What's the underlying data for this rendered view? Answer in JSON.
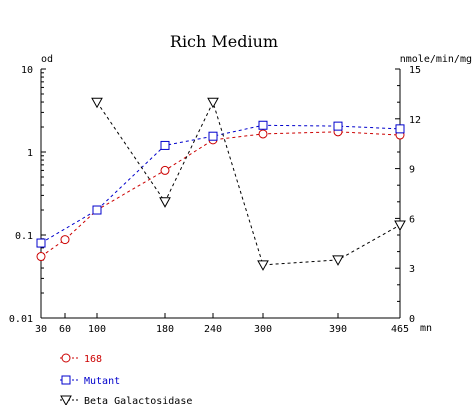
{
  "chart_data": {
    "type": "line",
    "title": "Rich Medium",
    "x": {
      "unit": "mn",
      "range": [
        30,
        465
      ],
      "ticks": [
        30,
        60,
        100,
        180,
        240,
        300,
        390,
        465
      ],
      "tick_labels": [
        "30",
        "60",
        "100",
        "180",
        "240",
        "300",
        "390",
        "465"
      ]
    },
    "y_left": {
      "label": "od",
      "scale": "log",
      "range": [
        0.01,
        10
      ],
      "ticks": [
        0.01,
        0.1,
        1,
        10
      ],
      "tick_labels": [
        "0.01",
        "0.1",
        "1",
        "10"
      ]
    },
    "y_right": {
      "label": "nmole/min/mg",
      "scale": "linear",
      "range": [
        0,
        15
      ],
      "ticks": [
        0,
        3,
        6,
        9,
        12,
        15
      ],
      "tick_labels": [
        "0",
        "3",
        "6",
        "9",
        "12",
        "15"
      ]
    },
    "series": [
      {
        "name": "168",
        "axis": "left",
        "marker": "circle",
        "color": "#cc0000",
        "x": [
          30,
          60,
          100,
          180,
          240,
          300,
          390,
          465
        ],
        "y": [
          0.055,
          0.088,
          0.2,
          0.6,
          1.4,
          1.65,
          1.75,
          1.6
        ]
      },
      {
        "name": "Mutant",
        "axis": "left",
        "marker": "square",
        "color": "#0000cc",
        "x": [
          30,
          100,
          180,
          240,
          300,
          390,
          465
        ],
        "y": [
          0.08,
          0.2,
          1.2,
          1.55,
          2.1,
          2.05,
          1.9
        ]
      },
      {
        "name": "Beta Galactosidase",
        "axis": "right",
        "marker": "triangle-down",
        "color": "#000000",
        "x": [
          100,
          180,
          240,
          300,
          390,
          465
        ],
        "y": [
          13.0,
          7.0,
          13.0,
          3.2,
          3.5,
          5.6
        ]
      }
    ],
    "legend_position": "bottom-left",
    "grid": false
  }
}
